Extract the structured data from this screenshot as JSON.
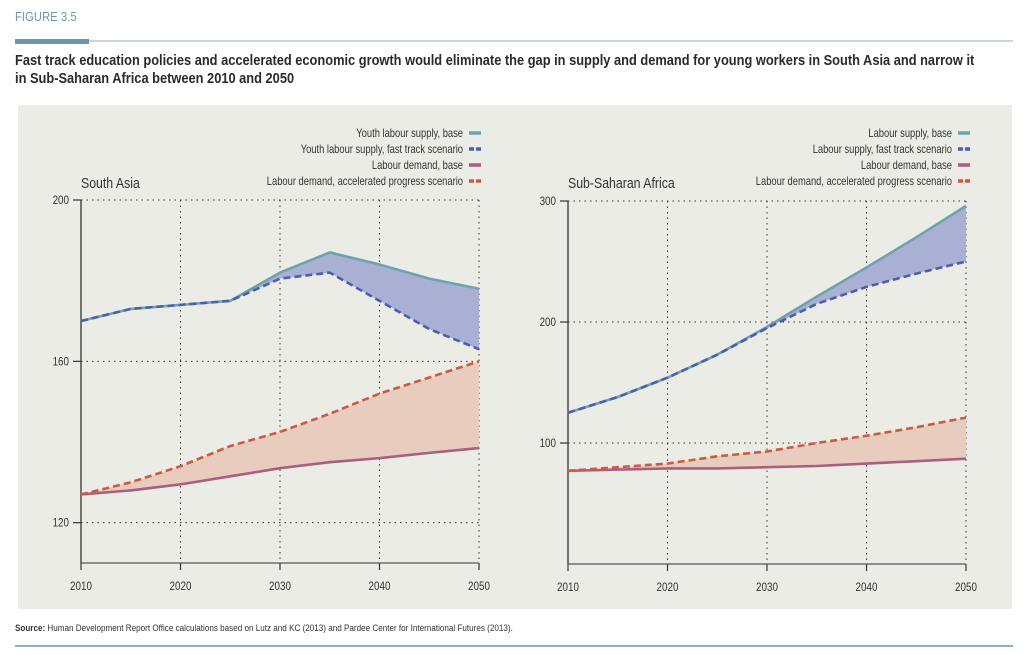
{
  "figure_label": "FIGURE 3.5",
  "title": "Fast track education policies and accelerated economic growth would eliminate the gap in supply and demand for young workers in South Asia and narrow it in Sub-Saharan Africa between 2010 and 2050",
  "source_label": "Source:",
  "source_text": "Human Development Report Office calculations based on Lutz and KC (2013) and Pardee Center for International Futures (2013).",
  "colors": {
    "supply_base": "#6fa3ac",
    "supply_fast": "#4a5fb3",
    "demand_base": "#a85f80",
    "demand_accel": "#cc5b3f",
    "supply_gap_fill": "#aab0d3",
    "demand_gap_fill": "#e8cdbf"
  },
  "chart_data": [
    {
      "type": "line",
      "title": "South Asia",
      "xlabel": "",
      "ylabel": "",
      "x": [
        2010,
        2015,
        2020,
        2025,
        2030,
        2035,
        2040,
        2045,
        2050
      ],
      "xticks": [
        2010,
        2020,
        2030,
        2040,
        2050
      ],
      "yticks": [
        120,
        160,
        200
      ],
      "ylim": [
        110,
        200
      ],
      "xlim": [
        2010,
        2050
      ],
      "grid": true,
      "legend_position": "top-right",
      "series": [
        {
          "name": "Youth labour supply, base",
          "key": "supply_base",
          "style": "solid",
          "values": [
            170,
            173,
            174,
            175,
            182,
            187,
            184,
            180.5,
            178
          ]
        },
        {
          "name": "Youth labour supply, fast track scenario",
          "key": "supply_fast",
          "style": "dashed",
          "values": [
            170,
            173,
            174,
            175,
            180.5,
            182,
            175,
            168,
            163
          ]
        },
        {
          "name": "Labour demand, base",
          "key": "demand_base",
          "style": "solid",
          "values": [
            127,
            128,
            129.5,
            131.5,
            133.5,
            135,
            136,
            137.3,
            138.5
          ]
        },
        {
          "name": "Labour demand, accelerated progress scenario",
          "key": "demand_accel",
          "style": "dashed",
          "values": [
            127,
            130,
            134,
            139,
            142.5,
            147,
            152,
            156,
            160
          ]
        }
      ]
    },
    {
      "type": "line",
      "title": "Sub-Saharan Africa",
      "xlabel": "",
      "ylabel": "",
      "x": [
        2010,
        2015,
        2020,
        2025,
        2030,
        2035,
        2040,
        2045,
        2050
      ],
      "xticks": [
        2010,
        2020,
        2030,
        2040,
        2050
      ],
      "yticks": [
        100,
        200,
        300
      ],
      "ylim": [
        0,
        300
      ],
      "xlim": [
        2010,
        2050
      ],
      "grid": true,
      "legend_position": "top-right",
      "series": [
        {
          "name": "Labour supply, base",
          "key": "supply_base",
          "style": "solid",
          "values": [
            125,
            138,
            154,
            173,
            196,
            221,
            245,
            270,
            296
          ]
        },
        {
          "name": "Labour supply, fast track scenario",
          "key": "supply_fast",
          "style": "dashed",
          "values": [
            125,
            138,
            154,
            173,
            195,
            215,
            229,
            240,
            250
          ]
        },
        {
          "name": "Labour  demand, base",
          "key": "demand_base",
          "style": "solid",
          "values": [
            77,
            78,
            79,
            79,
            80,
            81,
            83,
            85,
            87
          ]
        },
        {
          "name": "Labour demand, accelerated progress scenario",
          "key": "demand_accel",
          "style": "dashed",
          "values": [
            77,
            80,
            83,
            89,
            93,
            100,
            106,
            113,
            121
          ]
        }
      ]
    }
  ]
}
